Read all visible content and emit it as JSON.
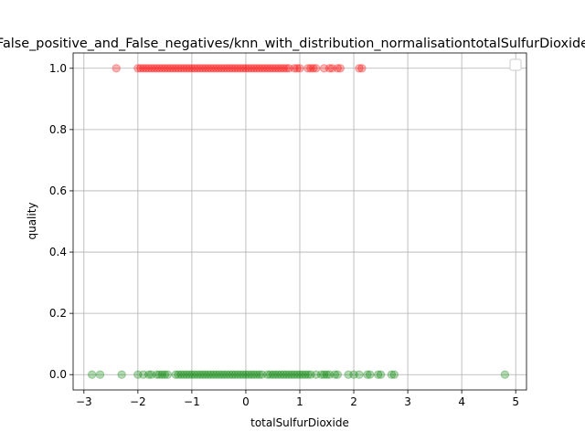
{
  "chart_data": {
    "type": "scatter",
    "title": "False_positive_and_False_negatives/knn_with_distribution_normalisationtotalSulfurDioxide",
    "xlabel": "totalSulfurDioxide",
    "ylabel": "quality",
    "xlim": [
      -3.2,
      5.2
    ],
    "ylim": [
      -0.05,
      1.05
    ],
    "xticks": [
      -3,
      -2,
      -1,
      0,
      1,
      2,
      3,
      4,
      5
    ],
    "xtick_labels": [
      "−3",
      "−2",
      "−1",
      "0",
      "1",
      "2",
      "3",
      "4",
      "5"
    ],
    "yticks": [
      0.0,
      0.2,
      0.4,
      0.6,
      0.8,
      1.0
    ],
    "ytick_labels": [
      "0.0",
      "0.2",
      "0.4",
      "0.6",
      "0.8",
      "1.0"
    ],
    "grid": true,
    "legend": "top-right",
    "series": [
      {
        "color": "#ff0000",
        "y": 1,
        "x": [
          -2.4,
          -2.0,
          -1.95,
          -1.9,
          -1.85,
          -1.8,
          -1.75,
          -1.7,
          -1.65,
          -1.6,
          -1.55,
          -1.5,
          -1.45,
          -1.4,
          -1.35,
          -1.3,
          -1.25,
          -1.2,
          -1.15,
          -1.1,
          -1.05,
          -1.0,
          -0.95,
          -0.9,
          -0.85,
          -0.8,
          -0.75,
          -0.7,
          -0.65,
          -0.6,
          -0.55,
          -0.5,
          -0.45,
          -0.4,
          -0.35,
          -0.3,
          -0.25,
          -0.2,
          -0.15,
          -0.1,
          -0.05,
          0.0,
          0.05,
          0.1,
          0.15,
          0.2,
          0.25,
          0.3,
          0.35,
          0.4,
          0.45,
          0.5,
          0.55,
          0.6,
          0.65,
          0.7,
          0.75,
          0.8,
          0.9,
          0.95,
          1.0,
          1.15,
          1.2,
          1.25,
          1.3,
          1.45,
          1.55,
          1.6,
          1.7,
          1.75,
          2.1,
          2.15
        ]
      },
      {
        "color": "#008000",
        "y": 0,
        "x": [
          -2.85,
          -2.7,
          -2.3,
          -2.0,
          -1.9,
          -1.8,
          -1.75,
          -1.65,
          -1.6,
          -1.55,
          -1.5,
          -1.45,
          -1.3,
          -1.25,
          -1.2,
          -1.15,
          -1.1,
          -1.05,
          -1.0,
          -0.95,
          -0.9,
          -0.85,
          -0.8,
          -0.75,
          -0.7,
          -0.65,
          -0.6,
          -0.55,
          -0.5,
          -0.45,
          -0.4,
          -0.35,
          -0.3,
          -0.25,
          -0.2,
          -0.15,
          -0.1,
          -0.05,
          0.0,
          0.05,
          0.1,
          0.15,
          0.2,
          0.25,
          0.3,
          0.4,
          0.45,
          0.5,
          0.55,
          0.6,
          0.65,
          0.7,
          0.75,
          0.8,
          0.85,
          0.9,
          0.95,
          1.0,
          1.05,
          1.1,
          1.15,
          1.2,
          1.3,
          1.4,
          1.45,
          1.5,
          1.55,
          1.65,
          1.7,
          1.9,
          2.0,
          2.1,
          2.25,
          2.3,
          2.45,
          2.5,
          2.7,
          2.75,
          4.8
        ]
      }
    ]
  }
}
